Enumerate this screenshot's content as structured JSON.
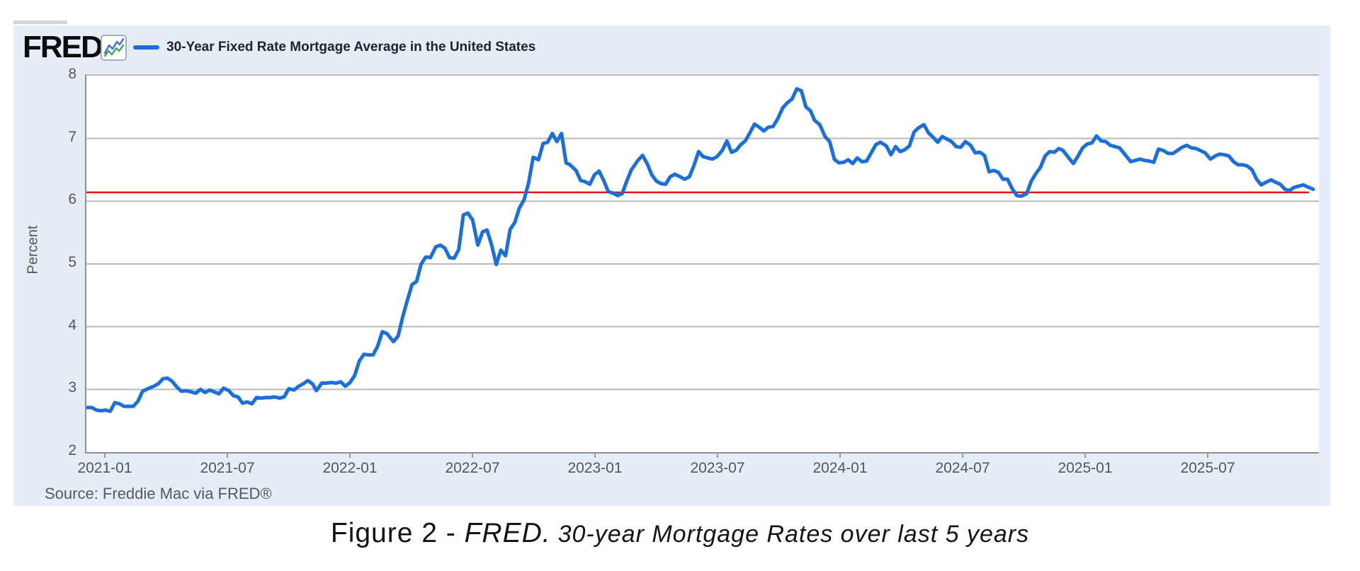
{
  "header": {
    "logo_text": "FRED",
    "logo_reg": "®",
    "series_title": "30-Year Fixed Rate Mortgage Average in the United States"
  },
  "source_note": "Source: Freddie Mac via FRED®",
  "caption": {
    "prefix": "Figure 2 - ",
    "fred_word": "FRED.",
    "rest": "30-year Mortgage Rates over last 5 years"
  },
  "colors": {
    "card_bg": "#e5edf7",
    "series_blue": "#1a6fdb",
    "reference_red": "#ee1311",
    "gridline": "#bababa",
    "axis": "#8f8f8f",
    "tick_text": "#565656",
    "icon_blue": "#3b73d9",
    "icon_green": "#3fa45f"
  },
  "chart_data": {
    "type": "line",
    "title": "30-Year Fixed Rate Mortgage Average in the United States",
    "ylabel": "Percent",
    "ylim": [
      2,
      8
    ],
    "yticks": [
      8,
      7,
      6,
      5,
      4,
      3,
      2
    ],
    "xtick_labels": [
      "2021-01",
      "2021-07",
      "2022-01",
      "2022-07",
      "2023-01",
      "2023-07",
      "2024-01",
      "2024-07",
      "2025-01",
      "2025-07"
    ],
    "x_domain": [
      "2020-12-03",
      "2025-12-07"
    ],
    "grid": true,
    "legend_position": "top-left",
    "reference_line": {
      "value": 6.14,
      "label": "current-level-reference"
    },
    "series": [
      {
        "name": "30-Year Fixed Rate Mortgage Average in the United States",
        "units": "Percent",
        "points": [
          [
            "2020-12-03",
            2.71
          ],
          [
            "2020-12-10",
            2.71
          ],
          [
            "2020-12-17",
            2.67
          ],
          [
            "2020-12-24",
            2.66
          ],
          [
            "2020-12-31",
            2.67
          ],
          [
            "2021-01-07",
            2.65
          ],
          [
            "2021-01-14",
            2.79
          ],
          [
            "2021-01-21",
            2.77
          ],
          [
            "2021-01-28",
            2.73
          ],
          [
            "2021-02-04",
            2.73
          ],
          [
            "2021-02-11",
            2.73
          ],
          [
            "2021-02-18",
            2.81
          ],
          [
            "2021-02-25",
            2.97
          ],
          [
            "2021-03-04",
            3.02
          ],
          [
            "2021-03-11",
            3.05
          ],
          [
            "2021-03-18",
            3.09
          ],
          [
            "2021-03-25",
            3.17
          ],
          [
            "2021-04-01",
            3.18
          ],
          [
            "2021-04-08",
            3.13
          ],
          [
            "2021-04-15",
            3.04
          ],
          [
            "2021-04-22",
            2.97
          ],
          [
            "2021-04-29",
            2.98
          ],
          [
            "2021-05-06",
            2.96
          ],
          [
            "2021-05-13",
            2.94
          ],
          [
            "2021-05-20",
            3.0
          ],
          [
            "2021-05-27",
            2.95
          ],
          [
            "2021-06-03",
            2.99
          ],
          [
            "2021-06-10",
            2.96
          ],
          [
            "2021-06-17",
            2.93
          ],
          [
            "2021-06-24",
            3.02
          ],
          [
            "2021-07-01",
            2.98
          ],
          [
            "2021-07-08",
            2.9
          ],
          [
            "2021-07-15",
            2.88
          ],
          [
            "2021-07-22",
            2.78
          ],
          [
            "2021-07-29",
            2.8
          ],
          [
            "2021-08-05",
            2.77
          ],
          [
            "2021-08-12",
            2.87
          ],
          [
            "2021-08-19",
            2.86
          ],
          [
            "2021-08-26",
            2.87
          ],
          [
            "2021-09-02",
            2.87
          ],
          [
            "2021-09-09",
            2.88
          ],
          [
            "2021-09-16",
            2.86
          ],
          [
            "2021-09-23",
            2.88
          ],
          [
            "2021-09-30",
            3.01
          ],
          [
            "2021-10-07",
            2.99
          ],
          [
            "2021-10-14",
            3.05
          ],
          [
            "2021-10-21",
            3.09
          ],
          [
            "2021-10-28",
            3.14
          ],
          [
            "2021-11-04",
            3.09
          ],
          [
            "2021-11-10",
            2.98
          ],
          [
            "2021-11-18",
            3.1
          ],
          [
            "2021-11-24",
            3.1
          ],
          [
            "2021-12-02",
            3.11
          ],
          [
            "2021-12-09",
            3.1
          ],
          [
            "2021-12-16",
            3.12
          ],
          [
            "2021-12-23",
            3.05
          ],
          [
            "2021-12-30",
            3.11
          ],
          [
            "2022-01-06",
            3.22
          ],
          [
            "2022-01-13",
            3.45
          ],
          [
            "2022-01-20",
            3.56
          ],
          [
            "2022-01-27",
            3.55
          ],
          [
            "2022-02-03",
            3.55
          ],
          [
            "2022-02-10",
            3.69
          ],
          [
            "2022-02-17",
            3.92
          ],
          [
            "2022-02-24",
            3.89
          ],
          [
            "2022-03-03",
            3.76
          ],
          [
            "2022-03-10",
            3.85
          ],
          [
            "2022-03-17",
            4.16
          ],
          [
            "2022-03-24",
            4.42
          ],
          [
            "2022-03-31",
            4.67
          ],
          [
            "2022-04-07",
            4.72
          ],
          [
            "2022-04-14",
            5.0
          ],
          [
            "2022-04-21",
            5.11
          ],
          [
            "2022-04-28",
            5.1
          ],
          [
            "2022-05-05",
            5.27
          ],
          [
            "2022-05-12",
            5.3
          ],
          [
            "2022-05-19",
            5.25
          ],
          [
            "2022-05-26",
            5.1
          ],
          [
            "2022-06-02",
            5.09
          ],
          [
            "2022-06-09",
            5.23
          ],
          [
            "2022-06-16",
            5.78
          ],
          [
            "2022-06-23",
            5.81
          ],
          [
            "2022-06-30",
            5.7
          ],
          [
            "2022-07-07",
            5.3
          ],
          [
            "2022-07-14",
            5.51
          ],
          [
            "2022-07-21",
            5.54
          ],
          [
            "2022-07-28",
            5.3
          ],
          [
            "2022-08-04",
            4.99
          ],
          [
            "2022-08-11",
            5.22
          ],
          [
            "2022-08-18",
            5.13
          ],
          [
            "2022-08-25",
            5.55
          ],
          [
            "2022-09-01",
            5.66
          ],
          [
            "2022-09-08",
            5.89
          ],
          [
            "2022-09-15",
            6.02
          ],
          [
            "2022-09-22",
            6.29
          ],
          [
            "2022-09-29",
            6.7
          ],
          [
            "2022-10-06",
            6.66
          ],
          [
            "2022-10-13",
            6.92
          ],
          [
            "2022-10-20",
            6.94
          ],
          [
            "2022-10-27",
            7.08
          ],
          [
            "2022-11-03",
            6.95
          ],
          [
            "2022-11-10",
            7.08
          ],
          [
            "2022-11-17",
            6.61
          ],
          [
            "2022-11-23",
            6.58
          ],
          [
            "2022-12-01",
            6.49
          ],
          [
            "2022-12-08",
            6.33
          ],
          [
            "2022-12-15",
            6.31
          ],
          [
            "2022-12-22",
            6.27
          ],
          [
            "2022-12-29",
            6.42
          ],
          [
            "2023-01-05",
            6.48
          ],
          [
            "2023-01-12",
            6.33
          ],
          [
            "2023-01-19",
            6.15
          ],
          [
            "2023-01-26",
            6.13
          ],
          [
            "2023-02-02",
            6.09
          ],
          [
            "2023-02-09",
            6.12
          ],
          [
            "2023-02-16",
            6.32
          ],
          [
            "2023-02-23",
            6.5
          ],
          [
            "2023-03-02",
            6.65
          ],
          [
            "2023-03-09",
            6.73
          ],
          [
            "2023-03-16",
            6.6
          ],
          [
            "2023-03-23",
            6.42
          ],
          [
            "2023-03-30",
            6.32
          ],
          [
            "2023-04-06",
            6.28
          ],
          [
            "2023-04-13",
            6.27
          ],
          [
            "2023-04-20",
            6.39
          ],
          [
            "2023-04-27",
            6.43
          ],
          [
            "2023-05-04",
            6.39
          ],
          [
            "2023-05-11",
            6.35
          ],
          [
            "2023-05-18",
            6.39
          ],
          [
            "2023-05-25",
            6.57
          ],
          [
            "2023-06-01",
            6.79
          ],
          [
            "2023-06-08",
            6.71
          ],
          [
            "2023-06-15",
            6.69
          ],
          [
            "2023-06-22",
            6.67
          ],
          [
            "2023-06-29",
            6.71
          ],
          [
            "2023-07-06",
            6.81
          ],
          [
            "2023-07-13",
            6.96
          ],
          [
            "2023-07-20",
            6.78
          ],
          [
            "2023-07-27",
            6.81
          ],
          [
            "2023-08-03",
            6.9
          ],
          [
            "2023-08-10",
            6.96
          ],
          [
            "2023-08-17",
            7.09
          ],
          [
            "2023-08-24",
            7.23
          ],
          [
            "2023-08-31",
            7.18
          ],
          [
            "2023-09-07",
            7.12
          ],
          [
            "2023-09-14",
            7.18
          ],
          [
            "2023-09-21",
            7.19
          ],
          [
            "2023-09-28",
            7.31
          ],
          [
            "2023-10-05",
            7.49
          ],
          [
            "2023-10-12",
            7.57
          ],
          [
            "2023-10-19",
            7.63
          ],
          [
            "2023-10-26",
            7.79
          ],
          [
            "2023-11-02",
            7.76
          ],
          [
            "2023-11-09",
            7.5
          ],
          [
            "2023-11-16",
            7.44
          ],
          [
            "2023-11-22",
            7.29
          ],
          [
            "2023-11-30",
            7.22
          ],
          [
            "2023-12-07",
            7.03
          ],
          [
            "2023-12-14",
            6.95
          ],
          [
            "2023-12-21",
            6.67
          ],
          [
            "2023-12-28",
            6.61
          ],
          [
            "2024-01-04",
            6.62
          ],
          [
            "2024-01-11",
            6.66
          ],
          [
            "2024-01-18",
            6.6
          ],
          [
            "2024-01-25",
            6.69
          ],
          [
            "2024-02-01",
            6.63
          ],
          [
            "2024-02-08",
            6.64
          ],
          [
            "2024-02-15",
            6.77
          ],
          [
            "2024-02-22",
            6.9
          ],
          [
            "2024-02-29",
            6.94
          ],
          [
            "2024-03-07",
            6.88
          ],
          [
            "2024-03-14",
            6.74
          ],
          [
            "2024-03-21",
            6.87
          ],
          [
            "2024-03-28",
            6.79
          ],
          [
            "2024-04-04",
            6.82
          ],
          [
            "2024-04-11",
            6.88
          ],
          [
            "2024-04-18",
            7.1
          ],
          [
            "2024-04-25",
            7.17
          ],
          [
            "2024-05-02",
            7.22
          ],
          [
            "2024-05-09",
            7.09
          ],
          [
            "2024-05-16",
            7.02
          ],
          [
            "2024-05-23",
            6.94
          ],
          [
            "2024-05-30",
            7.03
          ],
          [
            "2024-06-06",
            6.99
          ],
          [
            "2024-06-13",
            6.95
          ],
          [
            "2024-06-20",
            6.87
          ],
          [
            "2024-06-27",
            6.86
          ],
          [
            "2024-07-03",
            6.95
          ],
          [
            "2024-07-11",
            6.89
          ],
          [
            "2024-07-18",
            6.77
          ],
          [
            "2024-07-25",
            6.78
          ],
          [
            "2024-08-01",
            6.73
          ],
          [
            "2024-08-08",
            6.47
          ],
          [
            "2024-08-15",
            6.49
          ],
          [
            "2024-08-22",
            6.46
          ],
          [
            "2024-08-29",
            6.35
          ],
          [
            "2024-09-05",
            6.35
          ],
          [
            "2024-09-12",
            6.2
          ],
          [
            "2024-09-19",
            6.09
          ],
          [
            "2024-09-26",
            6.08
          ],
          [
            "2024-10-03",
            6.12
          ],
          [
            "2024-10-10",
            6.32
          ],
          [
            "2024-10-17",
            6.44
          ],
          [
            "2024-10-24",
            6.54
          ],
          [
            "2024-10-31",
            6.72
          ],
          [
            "2024-11-07",
            6.79
          ],
          [
            "2024-11-14",
            6.78
          ],
          [
            "2024-11-21",
            6.84
          ],
          [
            "2024-11-27",
            6.81
          ],
          [
            "2024-12-05",
            6.69
          ],
          [
            "2024-12-12",
            6.6
          ],
          [
            "2024-12-19",
            6.72
          ],
          [
            "2024-12-26",
            6.85
          ],
          [
            "2025-01-02",
            6.91
          ],
          [
            "2025-01-09",
            6.93
          ],
          [
            "2025-01-16",
            7.04
          ],
          [
            "2025-01-23",
            6.96
          ],
          [
            "2025-01-30",
            6.95
          ],
          [
            "2025-02-06",
            6.89
          ],
          [
            "2025-02-13",
            6.87
          ],
          [
            "2025-02-20",
            6.85
          ],
          [
            "2025-02-27",
            6.76
          ],
          [
            "2025-03-06",
            6.63
          ],
          [
            "2025-03-13",
            6.65
          ],
          [
            "2025-03-20",
            6.67
          ],
          [
            "2025-03-27",
            6.65
          ],
          [
            "2025-04-03",
            6.64
          ],
          [
            "2025-04-10",
            6.62
          ],
          [
            "2025-04-17",
            6.83
          ],
          [
            "2025-04-24",
            6.81
          ],
          [
            "2025-05-01",
            6.76
          ],
          [
            "2025-05-08",
            6.76
          ],
          [
            "2025-05-15",
            6.81
          ],
          [
            "2025-05-22",
            6.86
          ],
          [
            "2025-05-29",
            6.89
          ],
          [
            "2025-06-05",
            6.85
          ],
          [
            "2025-06-12",
            6.84
          ],
          [
            "2025-06-18",
            6.81
          ],
          [
            "2025-06-26",
            6.77
          ],
          [
            "2025-07-03",
            6.67
          ],
          [
            "2025-07-10",
            6.72
          ],
          [
            "2025-07-17",
            6.75
          ],
          [
            "2025-07-24",
            6.74
          ],
          [
            "2025-07-31",
            6.72
          ],
          [
            "2025-08-07",
            6.63
          ],
          [
            "2025-08-14",
            6.58
          ],
          [
            "2025-08-21",
            6.58
          ],
          [
            "2025-08-28",
            6.56
          ],
          [
            "2025-09-04",
            6.5
          ],
          [
            "2025-09-11",
            6.35
          ],
          [
            "2025-09-18",
            6.26
          ],
          [
            "2025-09-25",
            6.3
          ],
          [
            "2025-10-02",
            6.34
          ],
          [
            "2025-10-09",
            6.3
          ],
          [
            "2025-10-16",
            6.27
          ],
          [
            "2025-10-23",
            6.19
          ],
          [
            "2025-10-30",
            6.17
          ],
          [
            "2025-11-06",
            6.22
          ],
          [
            "2025-11-13",
            6.24
          ],
          [
            "2025-11-20",
            6.26
          ],
          [
            "2025-11-26",
            6.23
          ],
          [
            "2025-12-04",
            6.19
          ]
        ]
      }
    ]
  }
}
